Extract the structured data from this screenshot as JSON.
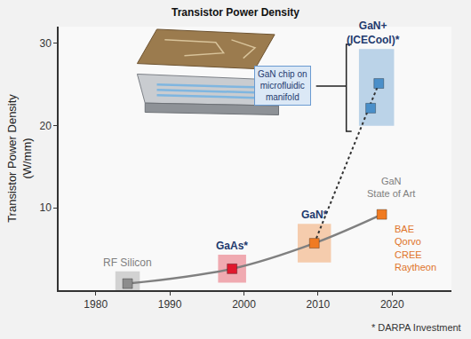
{
  "chart_data": {
    "type": "scatter",
    "title": "Transistor Power Density",
    "ylabel": [
      "Transistor Power Density",
      "(W/mm)"
    ],
    "xlim": [
      1975,
      2028
    ],
    "xticks": [
      1980,
      1990,
      2000,
      2010,
      2020
    ],
    "ylim": [
      0,
      32
    ],
    "yticks": [
      10,
      20,
      30
    ],
    "grid": false,
    "marker": "square",
    "series": [
      {
        "name": "RF Silicon",
        "color": "#8c8c8c",
        "x": [
          1984.3
        ],
        "values": [
          0.8
        ]
      },
      {
        "name": "GaAs*",
        "color": "#e0192d",
        "x": [
          1998.4
        ],
        "values": [
          2.6
        ]
      },
      {
        "name": "GaN*",
        "color": "#f07b22",
        "x": [
          2009.5
        ],
        "values": [
          5.7
        ]
      },
      {
        "name": "GaN State of Art",
        "color": "#f07b22",
        "x": [
          2018.6
        ],
        "values": [
          9.2
        ]
      },
      {
        "name": "GaN+ (ICECool)*",
        "color": "#4a8fc9",
        "x": [
          2017.1,
          2018.2
        ],
        "values": [
          22.1,
          25.1
        ]
      }
    ],
    "lines": [
      {
        "through": [
          "RF Silicon",
          "GaAs*",
          "GaN*",
          "GaN State of Art"
        ],
        "color": "#808080",
        "line_style": "solid"
      },
      {
        "through": [
          "GaN*",
          "GaN+ (ICECool)*"
        ],
        "color": "#333333",
        "line_style": "dotted"
      }
    ],
    "annotations": {
      "inset": [
        "GaN chip on",
        "microfluidic",
        "manifold"
      ],
      "companies": [
        "BAE",
        "Qorvo",
        "CREE",
        "Raytheon"
      ],
      "footnote": "* DARPA Investment"
    }
  }
}
